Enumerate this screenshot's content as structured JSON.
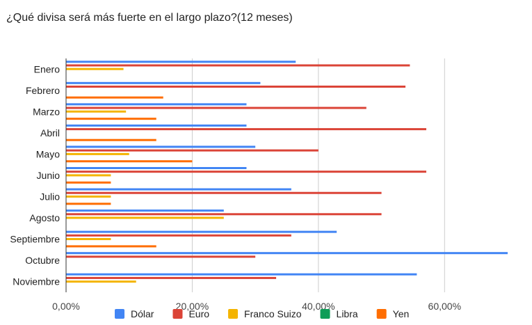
{
  "chart_data": {
    "type": "bar",
    "orientation": "horizontal",
    "title": "¿Qué divisa será más fuerte en el largo plazo?(12 meses)",
    "categories": [
      "Enero",
      "Febrero",
      "Marzo",
      "Abril",
      "Mayo",
      "Junio",
      "Julio",
      "Agosto",
      "Septiembre",
      "Octubre",
      "Noviembre"
    ],
    "series": [
      {
        "name": "Dólar",
        "color": "#4285f4",
        "values": [
          36.4,
          30.8,
          28.6,
          28.6,
          30.0,
          28.6,
          35.7,
          25.0,
          42.9,
          70.0,
          55.6
        ]
      },
      {
        "name": "Euro",
        "color": "#db4437",
        "values": [
          54.5,
          53.8,
          47.6,
          57.1,
          40.0,
          57.1,
          50.0,
          50.0,
          35.7,
          30.0,
          33.3
        ]
      },
      {
        "name": "Franco Suizo",
        "color": "#f4b400",
        "values": [
          9.1,
          0,
          9.5,
          0,
          10.0,
          7.1,
          7.1,
          25.0,
          7.1,
          0,
          11.1
        ]
      },
      {
        "name": "Libra",
        "color": "#0f9d58",
        "values": [
          0,
          0,
          0,
          0,
          0,
          0,
          0,
          0,
          0,
          0,
          0
        ]
      },
      {
        "name": "Yen",
        "color": "#ff6d01",
        "values": [
          0,
          15.4,
          14.3,
          14.3,
          20.0,
          7.1,
          7.1,
          0,
          14.3,
          0,
          0
        ]
      }
    ],
    "x_ticks": [
      0,
      20,
      40,
      60
    ],
    "x_tick_labels": [
      "0,00%",
      "20,00%",
      "40,00%",
      "60,00%"
    ],
    "xlim": [
      0,
      70
    ],
    "grid": true,
    "legend_position": "bottom"
  }
}
